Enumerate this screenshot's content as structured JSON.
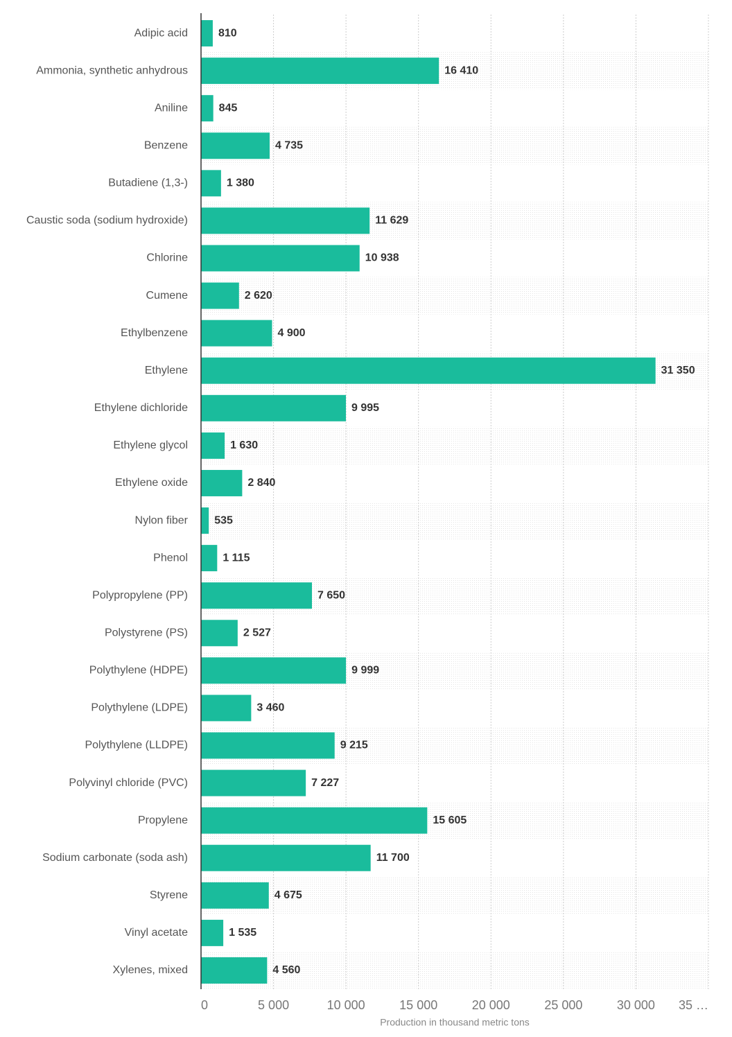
{
  "chart_data": {
    "type": "bar",
    "orientation": "horizontal",
    "x_label": "Production in thousand metric tons",
    "categories": [
      "Adipic acid",
      "Ammonia, synthetic anhydrous",
      "Aniline",
      "Benzene",
      "Butadiene (1,3-)",
      "Caustic soda (sodium hydroxide)",
      "Chlorine",
      "Cumene",
      "Ethylbenzene",
      "Ethylene",
      "Ethylene dichloride",
      "Ethylene glycol",
      "Ethylene oxide",
      "Nylon fiber",
      "Phenol",
      "Polypropylene (PP)",
      "Polystyrene (PS)",
      "Polythylene (HDPE)",
      "Polythylene (LDPE)",
      "Polythylene (LLDPE)",
      "Polyvinyl chloride (PVC)",
      "Propylene",
      "Sodium carbonate (soda ash)",
      "Styrene",
      "Vinyl acetate",
      "Xylenes, mixed"
    ],
    "values": [
      810,
      16410,
      845,
      4735,
      1380,
      11629,
      10938,
      2620,
      4900,
      31350,
      9995,
      1630,
      2840,
      535,
      1115,
      7650,
      2527,
      9999,
      3460,
      9215,
      7227,
      15605,
      11700,
      4675,
      1535,
      4560
    ],
    "value_labels": [
      "810",
      "16 410",
      "845",
      "4 735",
      "1 380",
      "11 629",
      "10 938",
      "2 620",
      "4 900",
      "31 350",
      "9 995",
      "1 630",
      "2 840",
      "535",
      "1 115",
      "7 650",
      "2 527",
      "9 999",
      "3 460",
      "9 215",
      "7 227",
      "15 605",
      "11 700",
      "4 675",
      "1 535",
      "4 560"
    ],
    "color": "#1abc9c",
    "xlim": [
      0,
      35000
    ],
    "xticks": [
      0,
      {
        "value": 5000,
        "label": "5 000"
      },
      {
        "value": 10000,
        "label": "10 000"
      },
      {
        "value": 15000,
        "label": "15 000"
      },
      {
        "value": 20000,
        "label": "20 000"
      },
      {
        "value": 25000,
        "label": "25 000"
      },
      {
        "value": 30000,
        "label": "30 000"
      },
      {
        "value": 35000,
        "label": "35 …"
      }
    ],
    "grid": true
  }
}
